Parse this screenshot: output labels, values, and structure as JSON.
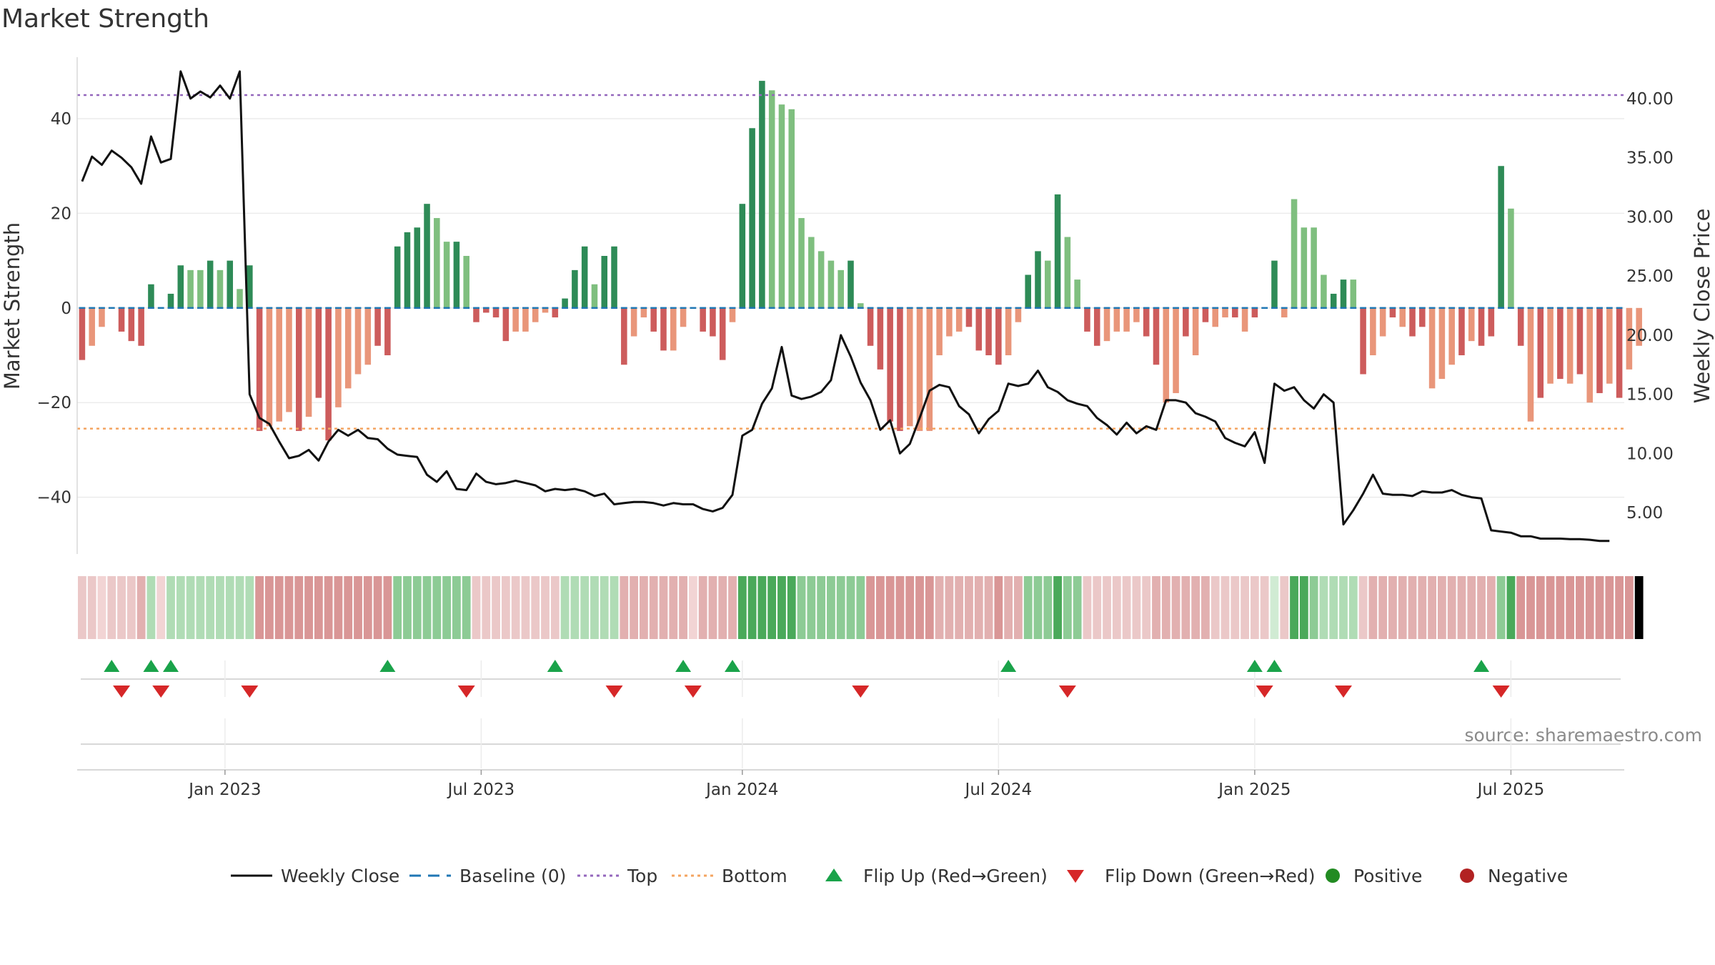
{
  "title": "Market Strength",
  "source": "source: sharemaestro.com",
  "colors": {
    "strong_pos": "#2e8b57",
    "weak_pos": "#7fbf7f",
    "strong_neg": "#cd5c5c",
    "weak_neg": "#e9967a",
    "line": "#111111",
    "baseline": "#1f77b4",
    "top": "#9467bd",
    "bottom": "#f4a460",
    "flip_up": "#1aa34a",
    "flip_down": "#d62728"
  },
  "chart_data": {
    "type": "bar",
    "title": "Market Strength",
    "ylabel_left": "Market Strength",
    "ylabel_right": "Weekly Close Price",
    "ylim_left": [
      -52,
      53
    ],
    "ylim_right": [
      1.5,
      43.5
    ],
    "yticks_left": [
      "−40",
      "−20",
      "0",
      "20",
      "40"
    ],
    "yticks_right": [
      "5.00",
      "10.00",
      "15.00",
      "20.00",
      "25.00",
      "30.00",
      "35.00",
      "40.00"
    ],
    "xtick_labels": [
      "Jan 2023",
      "Jul 2023",
      "Jan 2024",
      "Jul 2024",
      "Jan 2025",
      "Jul 2025"
    ],
    "xtick_weeks": [
      15,
      41,
      67.5,
      93.5,
      119.5,
      145.5
    ],
    "top_level": 45,
    "bottom_level": -25.5,
    "weeks": 157,
    "strength": [
      -11,
      -8,
      -4,
      0,
      -5,
      -7,
      -8,
      5,
      0,
      3,
      9,
      8,
      8,
      10,
      8,
      10,
      4,
      9,
      -26,
      -25,
      -24,
      -22,
      -26,
      -23,
      -19,
      -28,
      -21,
      -17,
      -14,
      -12,
      -8,
      -10,
      13,
      16,
      17,
      22,
      19,
      14,
      14,
      11,
      -3,
      -1,
      -2,
      -7,
      -5,
      -5,
      -3,
      -1,
      -2,
      2,
      8,
      13,
      5,
      11,
      13,
      -12,
      -6,
      -2,
      -5,
      -9,
      -9,
      -4,
      0,
      -5,
      -6,
      -11,
      -3,
      22,
      38,
      48,
      46,
      43,
      42,
      19,
      15,
      12,
      10,
      8,
      10,
      1,
      -8,
      -13,
      -24,
      -26,
      -25,
      -26,
      -26,
      -10,
      -6,
      -5,
      -4,
      -9,
      -10,
      -12,
      -10,
      -3,
      7,
      12,
      10,
      24,
      15,
      6,
      -5,
      -8,
      -7,
      -5,
      -5,
      -3,
      -6,
      -12,
      -20,
      -18,
      -6,
      -10,
      -3,
      -4,
      -2,
      -2,
      -5,
      -2,
      0,
      10,
      -2,
      23,
      17,
      17,
      7,
      3,
      6,
      6,
      -14,
      -10,
      -6,
      -2,
      -4,
      -6,
      -4,
      -17,
      -15,
      -12,
      -10,
      -7,
      -8,
      -6,
      30,
      21,
      -8,
      -24,
      -19,
      -16,
      -15,
      -16,
      -14,
      -20,
      -18,
      -16,
      -19,
      -13,
      -8
    ],
    "bar_strong": [
      1,
      0,
      0,
      0,
      1,
      1,
      1,
      1,
      0,
      1,
      1,
      0,
      0,
      1,
      0,
      1,
      0,
      1,
      1,
      0,
      0,
      0,
      1,
      0,
      1,
      1,
      0,
      0,
      0,
      0,
      1,
      1,
      1,
      1,
      1,
      1,
      0,
      0,
      1,
      0,
      1,
      1,
      1,
      1,
      0,
      0,
      0,
      0,
      1,
      1,
      1,
      1,
      0,
      1,
      1,
      1,
      0,
      0,
      1,
      1,
      0,
      0,
      1,
      1,
      1,
      1,
      0,
      1,
      1,
      1,
      0,
      0,
      0,
      0,
      0,
      0,
      0,
      0,
      1,
      0,
      1,
      1,
      1,
      1,
      0,
      0,
      0,
      0,
      0,
      0,
      1,
      1,
      1,
      1,
      0,
      0,
      1,
      1,
      0,
      1,
      0,
      0,
      1,
      1,
      0,
      0,
      0,
      0,
      1,
      1,
      0,
      0,
      1,
      0,
      1,
      0,
      0,
      1,
      0,
      1,
      1,
      1,
      0,
      0,
      0,
      0,
      0,
      1,
      1,
      0,
      1,
      0,
      0,
      1,
      0,
      1,
      1,
      0,
      0,
      0,
      1,
      0,
      1,
      1,
      1,
      0,
      1,
      0,
      1,
      0,
      1,
      0,
      1,
      0,
      1,
      0,
      1
    ],
    "close": [
      33.0,
      35.1,
      34.4,
      35.6,
      35.0,
      34.2,
      32.8,
      36.8,
      34.6,
      34.9,
      42.3,
      40.0,
      40.6,
      40.1,
      41.1,
      40.0,
      42.3,
      15.0,
      13.0,
      12.5,
      11.0,
      9.6,
      9.8,
      10.3,
      9.4,
      11.0,
      12.0,
      11.5,
      12.0,
      11.3,
      11.2,
      10.4,
      9.9,
      9.8,
      9.7,
      8.2,
      7.6,
      8.5,
      7.0,
      6.9,
      8.3,
      7.6,
      7.4,
      7.5,
      7.7,
      7.5,
      7.3,
      6.8,
      7.0,
      6.9,
      7.0,
      6.8,
      6.4,
      6.6,
      5.7,
      5.8,
      5.9,
      5.9,
      5.8,
      5.6,
      5.8,
      5.7,
      5.7,
      5.3,
      5.1,
      5.4,
      6.5,
      11.5,
      12.0,
      14.2,
      15.5,
      19.0,
      14.9,
      14.6,
      14.8,
      15.2,
      16.2,
      20.0,
      18.2,
      16.0,
      14.5,
      12.0,
      12.8,
      10.0,
      10.8,
      13.0,
      15.3,
      15.8,
      15.6,
      14.0,
      13.3,
      11.7,
      12.9,
      13.6,
      15.9,
      15.7,
      15.9,
      17.0,
      15.6,
      15.2,
      14.5,
      14.2,
      14.0,
      13.0,
      12.4,
      11.6,
      12.6,
      11.7,
      12.3,
      12.0,
      14.5,
      14.5,
      14.3,
      13.4,
      13.1,
      12.7,
      11.3,
      10.9,
      10.6,
      11.8,
      9.2,
      15.9,
      15.3,
      15.6,
      14.5,
      13.8,
      15.0,
      14.3,
      4.0,
      5.2,
      6.6,
      8.2,
      6.6,
      6.5,
      6.5,
      6.4,
      6.8,
      6.7,
      6.7,
      6.9,
      6.5,
      6.3,
      6.2,
      3.5,
      3.4,
      3.3,
      3.0,
      3.0,
      2.8,
      2.8,
      2.8,
      2.75,
      2.75,
      2.7,
      2.6,
      2.6
    ],
    "heat_shade": [
      1,
      1,
      0,
      1,
      1,
      1,
      2,
      1,
      0,
      1,
      1,
      1,
      1,
      1,
      1,
      1,
      1,
      1,
      3,
      3,
      3,
      3,
      3,
      3,
      3,
      3,
      3,
      3,
      3,
      3,
      3,
      3,
      2,
      2,
      2,
      2,
      2,
      2,
      2,
      2,
      1,
      1,
      1,
      1,
      1,
      1,
      1,
      1,
      1,
      1,
      1,
      1,
      1,
      1,
      1,
      2,
      2,
      2,
      2,
      2,
      2,
      2,
      0,
      2,
      2,
      2,
      2,
      3,
      3,
      3,
      3,
      3,
      3,
      2,
      2,
      2,
      2,
      2,
      2,
      2,
      3,
      3,
      3,
      3,
      3,
      3,
      3,
      2,
      2,
      2,
      2,
      2,
      2,
      3,
      2,
      2,
      2,
      2,
      2,
      3,
      2,
      2,
      1,
      1,
      1,
      1,
      1,
      1,
      1,
      2,
      2,
      2,
      2,
      2,
      2,
      1,
      1,
      1,
      1,
      1,
      1,
      0,
      1,
      3,
      3,
      2,
      1,
      1,
      1,
      1,
      1,
      2,
      2,
      2,
      2,
      2,
      2,
      2,
      2,
      2,
      2,
      2,
      2,
      2,
      2,
      3,
      3,
      3,
      3,
      3,
      3,
      3,
      3,
      3,
      3,
      3,
      3,
      3
    ],
    "flip_up_weeks": [
      3,
      7,
      9,
      31,
      48,
      61,
      66,
      94,
      119,
      121,
      142
    ],
    "flip_down_weeks": [
      4,
      8,
      17,
      39,
      54,
      62,
      79,
      100,
      120,
      128,
      144
    ]
  },
  "legend": [
    {
      "label": "Weekly Close",
      "kind": "line"
    },
    {
      "label": "Baseline (0)",
      "kind": "dash"
    },
    {
      "label": "Top",
      "kind": "dot-purple"
    },
    {
      "label": "Bottom",
      "kind": "dot-orange"
    },
    {
      "label": "Flip Up (Red→Green)",
      "kind": "tri-up"
    },
    {
      "label": "Flip Down (Green→Red)",
      "kind": "tri-down"
    },
    {
      "label": "Positive",
      "kind": "dot-green"
    },
    {
      "label": "Negative",
      "kind": "dot-red"
    }
  ]
}
